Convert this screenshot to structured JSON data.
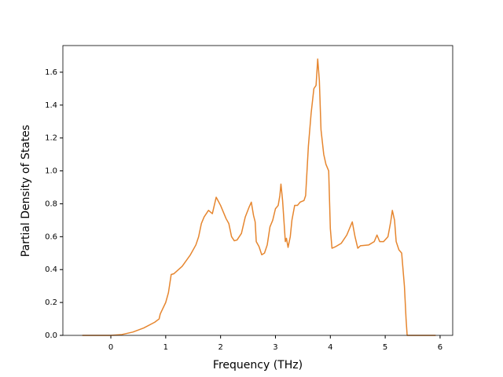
{
  "chart_data": {
    "type": "line",
    "x_label": "Frequency (THz)",
    "y_label": "Partial Density of States",
    "x": [
      -0.52,
      0,
      0.2,
      0.4,
      0.6,
      0.8,
      0.88,
      0.9,
      1.0,
      1.05,
      1.1,
      1.15,
      1.3,
      1.45,
      1.55,
      1.6,
      1.65,
      1.7,
      1.78,
      1.85,
      1.92,
      2.0,
      2.1,
      2.15,
      2.2,
      2.25,
      2.3,
      2.38,
      2.45,
      2.52,
      2.56,
      2.6,
      2.63,
      2.65,
      2.7,
      2.75,
      2.8,
      2.85,
      2.9,
      2.95,
      3.0,
      3.05,
      3.08,
      3.1,
      3.13,
      3.18,
      3.2,
      3.23,
      3.27,
      3.3,
      3.35,
      3.4,
      3.45,
      3.52,
      3.55,
      3.6,
      3.65,
      3.7,
      3.74,
      3.77,
      3.8,
      3.83,
      3.88,
      3.92,
      3.97,
      4.0,
      4.03,
      4.1,
      4.2,
      4.3,
      4.35,
      4.4,
      4.45,
      4.5,
      4.55,
      4.7,
      4.8,
      4.85,
      4.9,
      4.97,
      5.05,
      5.1,
      5.13,
      5.17,
      5.2,
      5.25,
      5.3,
      5.35,
      5.38,
      5.4,
      5.92
    ],
    "values": [
      0,
      0,
      0.005,
      0.02,
      0.045,
      0.08,
      0.1,
      0.13,
      0.2,
      0.26,
      0.37,
      0.375,
      0.42,
      0.49,
      0.55,
      0.6,
      0.68,
      0.72,
      0.76,
      0.74,
      0.84,
      0.79,
      0.71,
      0.68,
      0.6,
      0.575,
      0.58,
      0.62,
      0.72,
      0.78,
      0.81,
      0.73,
      0.69,
      0.57,
      0.54,
      0.49,
      0.5,
      0.55,
      0.66,
      0.7,
      0.77,
      0.79,
      0.85,
      0.92,
      0.82,
      0.57,
      0.59,
      0.535,
      0.6,
      0.7,
      0.79,
      0.79,
      0.81,
      0.82,
      0.85,
      1.15,
      1.35,
      1.5,
      1.52,
      1.68,
      1.55,
      1.25,
      1.1,
      1.04,
      1.0,
      0.65,
      0.53,
      0.54,
      0.56,
      0.61,
      0.65,
      0.69,
      0.6,
      0.53,
      0.545,
      0.55,
      0.57,
      0.61,
      0.57,
      0.57,
      0.6,
      0.69,
      0.76,
      0.7,
      0.57,
      0.52,
      0.5,
      0.3,
      0.1,
      0,
      0
    ],
    "color": "#e6862f",
    "xlim": [
      -0.874,
      6.23
    ],
    "xticks": [
      0,
      1,
      2,
      3,
      4,
      5,
      6
    ],
    "ylim": [
      0,
      1.762
    ],
    "yticks": [
      {
        "value": 0,
        "label": "0.0"
      },
      {
        "value": 0.2,
        "label": "0.2"
      },
      {
        "value": 0.4,
        "label": "0.4"
      },
      {
        "value": 0.6,
        "label": "0.6"
      },
      {
        "value": 0.8,
        "label": "0.8"
      },
      {
        "value": 1.0,
        "label": "1.0"
      },
      {
        "value": 1.2,
        "label": "1.2"
      },
      {
        "value": 1.4,
        "label": "1.4"
      },
      {
        "value": 1.6,
        "label": "1.6"
      }
    ],
    "grid": false
  }
}
